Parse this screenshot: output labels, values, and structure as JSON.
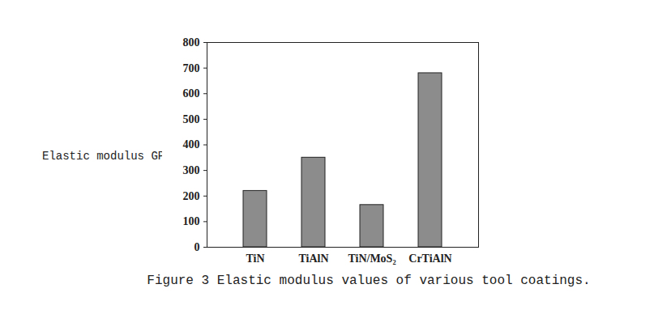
{
  "chart_data": {
    "type": "bar",
    "title": "Figure 3 Elastic modulus values of various tool coatings.",
    "y_label": "Elastic modulus GPa",
    "categories": [
      "TiN",
      "TiAlN",
      "TiN/MoS₂",
      "CrTiAlN"
    ],
    "values": [
      220,
      350,
      165,
      680
    ],
    "color": "#8c8c8c",
    "ylim": [
      0,
      800
    ],
    "yticks": [
      0,
      100,
      200,
      300,
      400,
      500,
      600,
      700,
      800
    ],
    "grid": false
  }
}
